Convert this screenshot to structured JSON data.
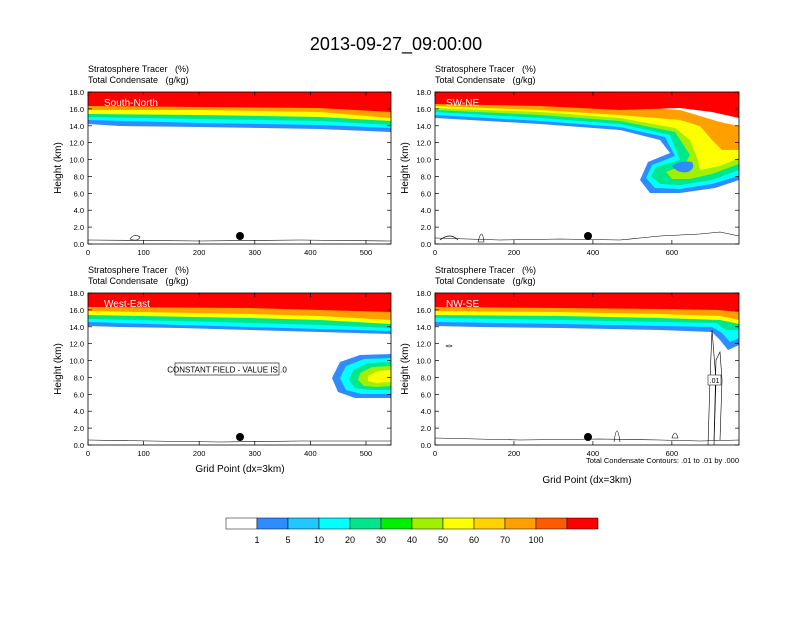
{
  "page_title": "2013-09-27_09:00:00",
  "colors": {
    "bins": [
      "#ffffff",
      "#2f8cff",
      "#20c8ff",
      "#00ffff",
      "#00e68c",
      "#00f000",
      "#a0f000",
      "#ffff00",
      "#ffd200",
      "#ffa000",
      "#ff5a00",
      "#ff0000"
    ]
  },
  "colorbar": {
    "labels": [
      "1",
      "5",
      "10",
      "20",
      "30",
      "40",
      "50",
      "60",
      "70",
      "100"
    ]
  },
  "chart_data": [
    {
      "type": "contour",
      "panel_label": "South-North",
      "title_line1": "Stratosphere Tracer   (%)",
      "title_line2": "Total Condensate   (g/kg)",
      "ylabel": "Height (km)",
      "xlabel": "",
      "xlim": [
        0,
        545
      ],
      "ylim": [
        0,
        18
      ],
      "xticks": [
        "0",
        "100",
        "200",
        "300",
        "400",
        "500"
      ],
      "yticks": [
        "0.0",
        "2.0",
        "4.0",
        "6.0",
        "8.0",
        "10.0",
        "12.0",
        "14.0",
        "16.0",
        "18.0"
      ],
      "marker_x": 275,
      "tracer_base_km": 14.0,
      "note": "",
      "constant_field_label": ""
    },
    {
      "type": "contour",
      "panel_label": "SW-NE",
      "title_line1": "Stratosphere Tracer   (%)",
      "title_line2": "Total Condensate   (g/kg)",
      "ylabel": "Height (km)",
      "xlabel": "",
      "xlim": [
        0,
        770
      ],
      "ylim": [
        0,
        18
      ],
      "xticks": [
        "0",
        "200",
        "400",
        "600"
      ],
      "yticks": [
        "0.0",
        "2.0",
        "4.0",
        "6.0",
        "8.0",
        "10.0",
        "12.0",
        "14.0",
        "16.0",
        "18.0"
      ],
      "marker_x": 390,
      "tracer_base_km": 13.5,
      "note": "",
      "constant_field_label": ""
    },
    {
      "type": "contour",
      "panel_label": "West-East",
      "title_line1": "Stratosphere Tracer   (%)",
      "title_line2": "Total Condensate   (g/kg)",
      "ylabel": "Height (km)",
      "xlabel": "Grid Point (dx=3km)",
      "xlim": [
        0,
        545
      ],
      "ylim": [
        0,
        18
      ],
      "xticks": [
        "0",
        "100",
        "200",
        "300",
        "400",
        "500"
      ],
      "yticks": [
        "0.0",
        "2.0",
        "4.0",
        "6.0",
        "8.0",
        "10.0",
        "12.0",
        "14.0",
        "16.0",
        "18.0"
      ],
      "marker_x": 275,
      "tracer_base_km": 14.0,
      "note": "",
      "constant_field_label": "CONSTANT FIELD - VALUE IS .0"
    },
    {
      "type": "contour",
      "panel_label": "NW-SE",
      "title_line1": "Stratosphere Tracer   (%)",
      "title_line2": "Total Condensate   (g/kg)",
      "ylabel": "Height (km)",
      "xlabel": "Grid Point (dx=3km)",
      "xlim": [
        0,
        770
      ],
      "ylim": [
        0,
        18
      ],
      "xticks": [
        "0",
        "200",
        "400",
        "600"
      ],
      "yticks": [
        "0.0",
        "2.0",
        "4.0",
        "6.0",
        "8.0",
        "10.0",
        "12.0",
        "14.0",
        "16.0",
        "18.0"
      ],
      "marker_x": 390,
      "tracer_base_km": 14.0,
      "note": "Total Condensate Contours: .01 to .01 by .000",
      "constant_field_label": "",
      "contour_label": ".01"
    }
  ]
}
